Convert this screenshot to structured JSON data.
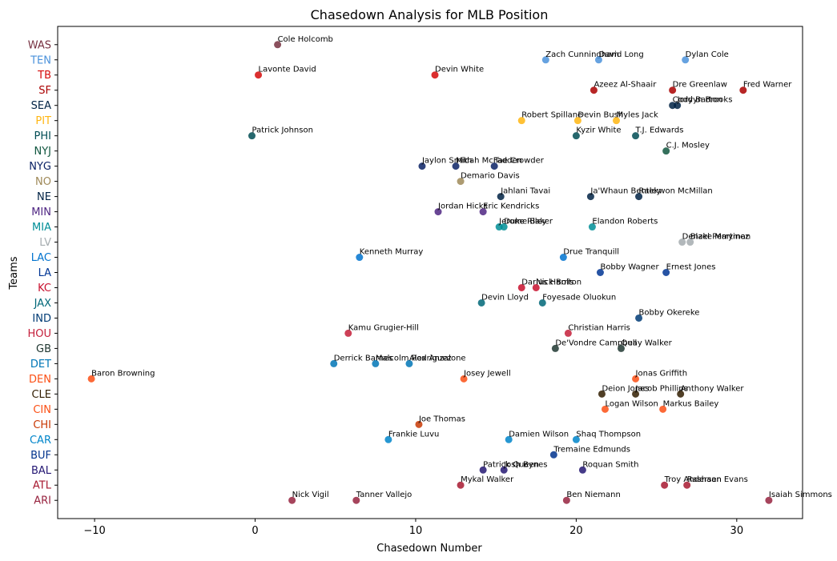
{
  "chart_data": {
    "type": "scatter",
    "title": "Chasedown Analysis for MLB Position",
    "xlabel": "Chasedown Number",
    "ylabel": "Teams",
    "xlim": [
      -12.3,
      34.1
    ],
    "xticks": [
      -10,
      0,
      10,
      20,
      30
    ],
    "grid": false,
    "teams": [
      {
        "name": "ARI",
        "color": "#97233f"
      },
      {
        "name": "ATL",
        "color": "#a71930"
      },
      {
        "name": "BAL",
        "color": "#241773"
      },
      {
        "name": "BUF",
        "color": "#00338d"
      },
      {
        "name": "CAR",
        "color": "#0085ca"
      },
      {
        "name": "CHI",
        "color": "#c83803"
      },
      {
        "name": "CIN",
        "color": "#fb4f14"
      },
      {
        "name": "CLE",
        "color": "#311d00"
      },
      {
        "name": "DEN",
        "color": "#fb4f14"
      },
      {
        "name": "DET",
        "color": "#0076b6"
      },
      {
        "name": "GB",
        "color": "#203731"
      },
      {
        "name": "HOU",
        "color": "#c41e3a"
      },
      {
        "name": "IND",
        "color": "#003b75"
      },
      {
        "name": "JAX",
        "color": "#006778"
      },
      {
        "name": "KC",
        "color": "#c8102e"
      },
      {
        "name": "LA",
        "color": "#003594"
      },
      {
        "name": "LAC",
        "color": "#0073cf"
      },
      {
        "name": "LV",
        "color": "#a5acaf"
      },
      {
        "name": "MIA",
        "color": "#008e97"
      },
      {
        "name": "MIN",
        "color": "#4f2683"
      },
      {
        "name": "NE",
        "color": "#002244"
      },
      {
        "name": "NO",
        "color": "#9f8958"
      },
      {
        "name": "NYG",
        "color": "#0b2265"
      },
      {
        "name": "NYJ",
        "color": "#125740"
      },
      {
        "name": "PHI",
        "color": "#004c54"
      },
      {
        "name": "PIT",
        "color": "#ffb612"
      },
      {
        "name": "SEA",
        "color": "#002244"
      },
      {
        "name": "SF",
        "color": "#aa0000"
      },
      {
        "name": "TB",
        "color": "#d50a0a"
      },
      {
        "name": "TEN",
        "color": "#4b92db"
      },
      {
        "name": "WAS",
        "color": "#773141"
      }
    ],
    "points": [
      {
        "team": "ARI",
        "player": "Nick Vigil",
        "x": 2.3
      },
      {
        "team": "ARI",
        "player": "Tanner Vallejo",
        "x": 6.3
      },
      {
        "team": "ARI",
        "player": "Ben Niemann",
        "x": 19.4
      },
      {
        "team": "ARI",
        "player": "Isaiah Simmons",
        "x": 32.0
      },
      {
        "team": "ATL",
        "player": "Mykal Walker",
        "x": 12.8
      },
      {
        "team": "ATL",
        "player": "Troy Andersen",
        "x": 25.5
      },
      {
        "team": "ATL",
        "player": "Rashaan Evans",
        "x": 26.9
      },
      {
        "team": "BAL",
        "player": "Patrick Queen",
        "x": 14.2
      },
      {
        "team": "BAL",
        "player": "Josh Bynes",
        "x": 15.5
      },
      {
        "team": "BAL",
        "player": "Roquan Smith",
        "x": 20.4
      },
      {
        "team": "BUF",
        "player": "Tremaine Edmunds",
        "x": 18.6
      },
      {
        "team": "CAR",
        "player": "Frankie Luvu",
        "x": 8.3
      },
      {
        "team": "CAR",
        "player": "Damien Wilson",
        "x": 15.8
      },
      {
        "team": "CAR",
        "player": "Shaq Thompson",
        "x": 20.0
      },
      {
        "team": "CHI",
        "player": "Joe Thomas",
        "x": 10.2
      },
      {
        "team": "CIN",
        "player": "Logan Wilson",
        "x": 21.8
      },
      {
        "team": "CIN",
        "player": "Markus Bailey",
        "x": 25.4
      },
      {
        "team": "CLE",
        "player": "Deion Jones",
        "x": 21.6
      },
      {
        "team": "CLE",
        "player": "Jacob Phillips",
        "x": 23.7
      },
      {
        "team": "CLE",
        "player": "Anthony Walker",
        "x": 26.5
      },
      {
        "team": "DEN",
        "player": "Baron Browning",
        "x": -10.2
      },
      {
        "team": "DEN",
        "player": "Josey Jewell",
        "x": 13.0
      },
      {
        "team": "DEN",
        "player": "Jonas Griffith",
        "x": 23.7
      },
      {
        "team": "DET",
        "player": "Derrick Barnes",
        "x": 4.9
      },
      {
        "team": "DET",
        "player": "Malcolm Rodriguez",
        "x": 7.5
      },
      {
        "team": "DET",
        "player": "Alex Anzalone",
        "x": 9.6
      },
      {
        "team": "GB",
        "player": "De'Vondre Campbell",
        "x": 18.7
      },
      {
        "team": "GB",
        "player": "Quay Walker",
        "x": 22.8
      },
      {
        "team": "HOU",
        "player": "Kamu Grugier-Hill",
        "x": 5.8
      },
      {
        "team": "HOU",
        "player": "Christian Harris",
        "x": 19.5
      },
      {
        "team": "IND",
        "player": "Bobby Okereke",
        "x": 23.9
      },
      {
        "team": "JAX",
        "player": "Devin Lloyd",
        "x": 14.1
      },
      {
        "team": "JAX",
        "player": "Foyesade Oluokun",
        "x": 17.9
      },
      {
        "team": "KC",
        "player": "Darius Harris",
        "x": 16.6
      },
      {
        "team": "KC",
        "player": "Nick Bolton",
        "x": 17.5
      },
      {
        "team": "LA",
        "player": "Bobby Wagner",
        "x": 21.5
      },
      {
        "team": "LA",
        "player": "Ernest Jones",
        "x": 25.6
      },
      {
        "team": "LAC",
        "player": "Kenneth Murray",
        "x": 6.5
      },
      {
        "team": "LAC",
        "player": "Drue Tranquill",
        "x": 19.2
      },
      {
        "team": "LV",
        "player": "Denzel Perryman",
        "x": 26.6
      },
      {
        "team": "LV",
        "player": "Blake Martinez",
        "x": 27.1
      },
      {
        "team": "MIA",
        "player": "Jerome Baker",
        "x": 15.2
      },
      {
        "team": "MIA",
        "player": "Duke Riley",
        "x": 15.5
      },
      {
        "team": "MIA",
        "player": "Elandon Roberts",
        "x": 21.0
      },
      {
        "team": "MIN",
        "player": "Jordan Hicks",
        "x": 11.4
      },
      {
        "team": "MIN",
        "player": "Eric Kendricks",
        "x": 14.2
      },
      {
        "team": "NE",
        "player": "Jahlani Tavai",
        "x": 15.3
      },
      {
        "team": "NE",
        "player": "Ja'Whaun Bentley",
        "x": 20.9
      },
      {
        "team": "NE",
        "player": "Raekwon McMillan",
        "x": 23.9
      },
      {
        "team": "NO",
        "player": "Demario Davis",
        "x": 12.8
      },
      {
        "team": "NYG",
        "player": "Jaylon Smith",
        "x": 10.4
      },
      {
        "team": "NYG",
        "player": "Micah McFadden",
        "x": 12.5
      },
      {
        "team": "NYG",
        "player": "Tae Crowder",
        "x": 14.9
      },
      {
        "team": "NYJ",
        "player": "C.J. Mosley",
        "x": 25.6
      },
      {
        "team": "PHI",
        "player": "Patrick Johnson",
        "x": -0.2
      },
      {
        "team": "PHI",
        "player": "Kyzir White",
        "x": 20.0
      },
      {
        "team": "PHI",
        "player": "T.J. Edwards",
        "x": 23.7
      },
      {
        "team": "PIT",
        "player": "Robert Spillane",
        "x": 16.6
      },
      {
        "team": "PIT",
        "player": "Devin Bush",
        "x": 20.1
      },
      {
        "team": "PIT",
        "player": "Myles Jack",
        "x": 22.5
      },
      {
        "team": "SEA",
        "player": "Cody Barton",
        "x": 26.0
      },
      {
        "team": "SEA",
        "player": "Jordyn Brooks",
        "x": 26.3
      },
      {
        "team": "SF",
        "player": "Azeez Al-Shaair",
        "x": 21.1
      },
      {
        "team": "SF",
        "player": "Dre Greenlaw",
        "x": 26.0
      },
      {
        "team": "SF",
        "player": "Fred Warner",
        "x": 30.4
      },
      {
        "team": "TB",
        "player": "Lavonte David",
        "x": 0.2
      },
      {
        "team": "TB",
        "player": "Devin White",
        "x": 11.2
      },
      {
        "team": "TEN",
        "player": "Zach Cunningham",
        "x": 18.1
      },
      {
        "team": "TEN",
        "player": "David Long",
        "x": 21.4
      },
      {
        "team": "TEN",
        "player": "Dylan Cole",
        "x": 26.8
      },
      {
        "team": "WAS",
        "player": "Cole Holcomb",
        "x": 1.4
      }
    ]
  }
}
